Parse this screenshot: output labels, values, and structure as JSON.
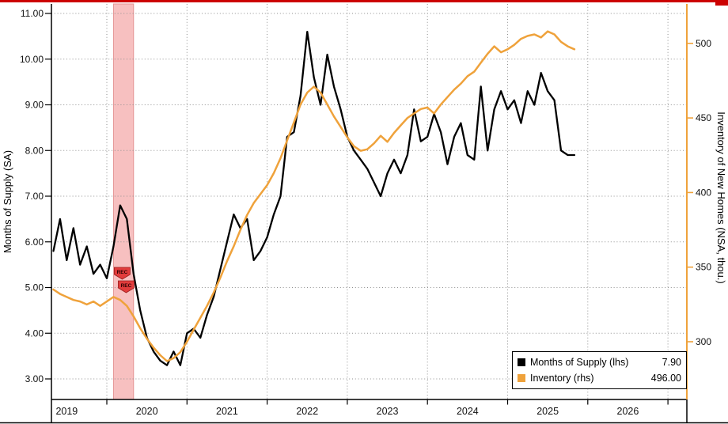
{
  "header": {
    "accent_color": "#cc0000"
  },
  "chart_data": {
    "type": "line",
    "x_axis": {
      "tick_labels": [
        "2019",
        "2020",
        "2021",
        "2022",
        "2023",
        "2024",
        "2025",
        "2026"
      ],
      "start": "2019-05",
      "frequency": "monthly"
    },
    "left_axis": {
      "title": "Months of Supply (SA)",
      "tick_values": [
        3,
        4,
        5,
        6,
        7,
        8,
        9,
        10,
        11
      ],
      "tick_labels": [
        "3.00",
        "4.00",
        "5.00",
        "6.00",
        "7.00",
        "8.00",
        "9.00",
        "10.00",
        "11.00"
      ],
      "range": [
        2.55,
        11.2
      ]
    },
    "right_axis": {
      "title": "Inventory of New Homes (NSA, thou.)",
      "tick_values": [
        300,
        350,
        400,
        450,
        500
      ],
      "tick_labels": [
        "300",
        "350",
        "400",
        "450",
        "500"
      ],
      "range": [
        261,
        527
      ],
      "color": "#efa23b"
    },
    "grid": {
      "color": "#8f8f8f",
      "style": "dotted"
    },
    "recession_band": {
      "start": "2020-02",
      "end": "2020-05",
      "fill": "#f7c0c0",
      "edge_color": "#e59595",
      "markers": [
        "REC",
        "REC"
      ],
      "marker_fill": "#e23c3c"
    },
    "series": [
      {
        "name": "Months of Supply (lhs)",
        "axis": "left",
        "color": "#000000",
        "line_width": 2.3,
        "last_value": "7.90",
        "values": [
          5.8,
          6.5,
          5.6,
          6.3,
          5.5,
          5.9,
          5.3,
          5.5,
          5.2,
          5.9,
          6.8,
          6.5,
          5.3,
          4.5,
          3.9,
          3.6,
          3.4,
          3.3,
          3.6,
          3.3,
          4.0,
          4.1,
          3.9,
          4.4,
          4.8,
          5.4,
          6.0,
          6.6,
          6.3,
          6.5,
          5.6,
          5.8,
          6.1,
          6.6,
          7.0,
          8.3,
          8.4,
          9.2,
          10.6,
          9.6,
          9.0,
          10.1,
          9.4,
          8.9,
          8.3,
          8.0,
          7.8,
          7.6,
          7.3,
          7.0,
          7.5,
          7.8,
          7.5,
          7.9,
          8.9,
          8.2,
          8.3,
          8.8,
          8.4,
          7.7,
          8.3,
          8.6,
          7.9,
          7.8,
          9.4,
          8.0,
          8.9,
          9.3,
          8.9,
          9.1,
          8.6,
          9.3,
          9.0,
          9.7,
          9.3,
          9.1,
          8.0,
          7.9,
          7.9
        ]
      },
      {
        "name": "Inventory (rhs)",
        "axis": "right",
        "color": "#efa23b",
        "line_width": 2.5,
        "last_value": "496.00",
        "values": [
          335,
          332,
          330,
          328,
          327,
          325,
          327,
          324,
          327,
          330,
          328,
          324,
          317,
          309,
          302,
          296,
          291,
          287,
          289,
          293,
          300,
          308,
          316,
          324,
          333,
          343,
          354,
          364,
          375,
          385,
          393,
          399,
          405,
          413,
          423,
          435,
          447,
          459,
          467,
          471,
          467,
          459,
          451,
          444,
          437,
          431,
          428,
          429,
          433,
          438,
          434,
          440,
          445,
          450,
          453,
          456,
          457,
          453,
          459,
          464,
          469,
          473,
          478,
          481,
          487,
          493,
          498,
          494,
          496,
          499,
          503,
          505,
          506,
          504,
          508,
          506,
          501,
          498,
          496
        ]
      }
    ],
    "legend": {
      "position": "bottom-right",
      "entries": [
        {
          "label": "Months of Supply (lhs)",
          "value": "7.90",
          "swatch": "#000000"
        },
        {
          "label": "Inventory (rhs)",
          "value": "496.00",
          "swatch": "#efa23b"
        }
      ]
    }
  }
}
